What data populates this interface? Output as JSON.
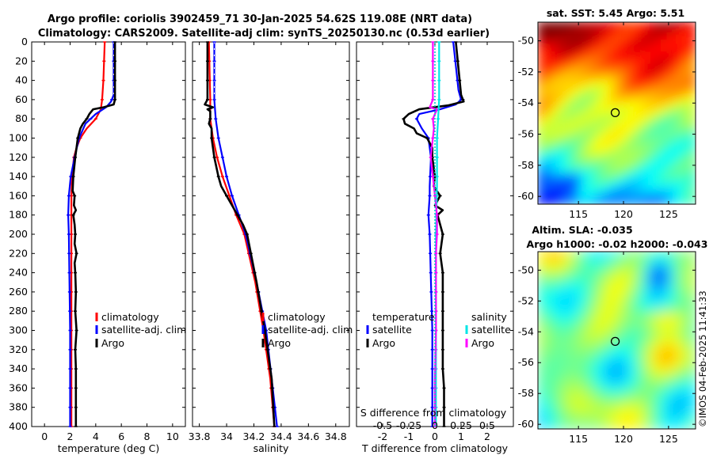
{
  "header": {
    "title_line1": "Argo profile: coriolis 3902459_71 30-Jan-2025 54.62S 119.08E (NRT data)",
    "title_line2": "Climatology: CARS2009. Satellite-adj clim: synTS_20250130.nc (0.53d earlier)"
  },
  "watermark": "©IMOS 04-Feb-2025 11:41:33",
  "colors": {
    "climatology": "#ff0000",
    "satellite": "#0000ff",
    "argo": "#000000",
    "sat_salinity": "#00e5e5",
    "argo_salinity": "#ff00ff",
    "zero_line": "#00c8c8"
  },
  "chart_data": [
    {
      "type": "line",
      "id": "temperature",
      "xlabel": "temperature (deg C)",
      "xlim": [
        -1,
        11
      ],
      "xticks": [
        0,
        2,
        4,
        6,
        8,
        10
      ],
      "ylim": [
        400,
        0
      ],
      "yticks": [
        0,
        20,
        40,
        60,
        80,
        100,
        120,
        140,
        160,
        180,
        200,
        220,
        240,
        260,
        280,
        300,
        320,
        340,
        360,
        380,
        400
      ],
      "legend": [
        "climatology",
        "satellite-adj. clim",
        "Argo"
      ],
      "series": [
        {
          "name": "climatology",
          "color": "red",
          "depth": [
            0,
            40,
            60,
            70,
            80,
            90,
            100,
            110,
            120,
            140,
            160,
            180,
            200,
            250,
            300,
            350,
            400
          ],
          "value": [
            4.7,
            4.6,
            4.5,
            4.4,
            4.0,
            3.3,
            2.8,
            2.5,
            2.3,
            2.15,
            2.1,
            2.1,
            2.1,
            2.1,
            2.1,
            2.1,
            2.1
          ]
        },
        {
          "name": "satellite-adj. clim",
          "color": "blue",
          "depth": [
            0,
            55,
            62,
            68,
            75,
            85,
            100,
            120,
            140,
            160,
            180,
            200,
            250,
            300,
            350,
            400
          ],
          "value": [
            5.4,
            5.4,
            5.2,
            4.8,
            4.0,
            3.2,
            2.7,
            2.35,
            2.05,
            1.9,
            1.85,
            1.9,
            1.95,
            2.0,
            2.0,
            2.0
          ],
          "dashed": [
            0,
            55
          ]
        },
        {
          "name": "Argo",
          "color": "black",
          "depth": [
            0,
            60,
            65,
            68,
            70,
            75,
            80,
            85,
            90,
            100,
            110,
            120,
            140,
            155,
            160,
            170,
            175,
            180,
            190,
            200,
            210,
            220,
            230,
            240,
            260,
            280,
            300,
            320,
            340,
            360,
            380,
            400
          ],
          "value": [
            5.5,
            5.5,
            5.4,
            4.6,
            3.8,
            3.5,
            3.3,
            3.0,
            2.8,
            2.6,
            2.5,
            2.4,
            2.25,
            2.2,
            2.35,
            2.3,
            2.45,
            2.25,
            2.35,
            2.4,
            2.35,
            2.5,
            2.35,
            2.4,
            2.45,
            2.4,
            2.5,
            2.4,
            2.45,
            2.45,
            2.45,
            2.45
          ]
        }
      ]
    },
    {
      "type": "line",
      "id": "salinity",
      "xlabel": "salinity",
      "xlim": [
        33.75,
        34.9
      ],
      "xticks": [
        33.8,
        34,
        34.2,
        34.4,
        34.6,
        34.8
      ],
      "xticklabels": [
        "33.8",
        "34",
        "34.2",
        "34.4",
        "34.6",
        "34.8"
      ],
      "ylim": [
        400,
        0
      ],
      "legend": [
        "climatology",
        "satellite-adj. clim",
        "Argo"
      ],
      "series": [
        {
          "name": "climatology",
          "color": "red",
          "depth": [
            0,
            60,
            80,
            100,
            120,
            140,
            160,
            180,
            200,
            250,
            300,
            350,
            400
          ],
          "value": [
            33.87,
            33.88,
            33.88,
            33.9,
            33.93,
            33.97,
            34.02,
            34.07,
            34.13,
            34.21,
            34.27,
            34.32,
            34.35
          ]
        },
        {
          "name": "satellite-adj. clim",
          "color": "blue",
          "depth": [
            0,
            60,
            80,
            100,
            120,
            140,
            160,
            180,
            200,
            250,
            300,
            350,
            400
          ],
          "value": [
            33.91,
            33.91,
            33.92,
            33.94,
            33.97,
            34.0,
            34.04,
            34.09,
            34.14,
            34.22,
            34.29,
            34.33,
            34.37
          ],
          "dashed": [
            0,
            60
          ]
        },
        {
          "name": "Argo",
          "color": "black",
          "depth": [
            0,
            60,
            65,
            68,
            70,
            72,
            80,
            85,
            90,
            100,
            110,
            120,
            140,
            150,
            160,
            170,
            180,
            190,
            200,
            250,
            300,
            350,
            400
          ],
          "value": [
            33.86,
            33.86,
            33.84,
            33.9,
            33.86,
            33.88,
            33.88,
            33.87,
            33.89,
            33.89,
            33.9,
            33.91,
            33.94,
            33.96,
            34.0,
            34.04,
            34.08,
            34.12,
            34.15,
            34.22,
            34.28,
            34.33,
            34.35
          ]
        }
      ]
    },
    {
      "type": "line",
      "id": "difference",
      "xlabel": "T difference from climatology",
      "xlabel_top": "S difference from climatology",
      "xlim": [
        -3,
        3
      ],
      "xticks": [
        -2,
        -1,
        0,
        1,
        2
      ],
      "xticklabels": [
        "-2",
        "-1",
        "0",
        "1",
        "2"
      ],
      "top_ticks_s": [
        -0.5,
        -0.25,
        0,
        0.25,
        0.5
      ],
      "top_ticklabels": [
        "-0.5",
        "-0.25",
        "0",
        "0.25",
        "0.5"
      ],
      "ylim": [
        400,
        0
      ],
      "legend_left_title": "temperature",
      "legend_right_title": "salinity",
      "legend": [
        "satellite",
        "Argo",
        "satellite",
        "Argo"
      ],
      "series": [
        {
          "name": "T satellite",
          "color": "blue",
          "depth": [
            0,
            50,
            60,
            65,
            70,
            75,
            80,
            90,
            100,
            120,
            150,
            160,
            180,
            200,
            250,
            300,
            350,
            400
          ],
          "value": [
            0.7,
            0.9,
            1.0,
            0.8,
            0.2,
            -0.6,
            -0.7,
            -0.5,
            -0.25,
            -0.15,
            -0.2,
            -0.2,
            -0.25,
            -0.2,
            -0.15,
            -0.1,
            -0.1,
            -0.1
          ]
        },
        {
          "name": "T Argo",
          "color": "black",
          "depth": [
            0,
            55,
            62,
            66,
            70,
            75,
            80,
            85,
            90,
            95,
            100,
            110,
            120,
            140,
            150,
            160,
            170,
            175,
            180,
            190,
            200,
            220,
            240,
            260,
            280,
            300,
            320,
            340,
            360,
            380,
            400
          ],
          "value": [
            0.8,
            1.0,
            1.1,
            0.5,
            -0.6,
            -1.0,
            -1.2,
            -1.15,
            -0.8,
            -0.7,
            -0.3,
            -0.1,
            -0.1,
            0.0,
            -0.05,
            0.2,
            0.0,
            0.3,
            0.1,
            0.2,
            0.3,
            0.2,
            0.3,
            0.3,
            0.3,
            0.3,
            0.3,
            0.3,
            0.35,
            0.35,
            0.35
          ]
        },
        {
          "name": "S satellite",
          "color": "cyan",
          "depth": [
            0,
            40,
            60,
            80,
            100,
            150,
            200,
            250,
            300,
            350,
            400
          ],
          "value": [
            0.04,
            0.04,
            0.04,
            0.03,
            0.02,
            0.02,
            0.01,
            0.01,
            0.01,
            0.01,
            0.01
          ]
        },
        {
          "name": "S Argo",
          "color": "magenta",
          "depth": [
            0,
            60,
            68,
            70,
            80,
            90,
            100,
            120,
            140,
            160,
            180,
            200,
            220,
            250,
            300,
            350,
            400
          ],
          "value": [
            -0.02,
            -0.02,
            -0.05,
            0.02,
            -0.02,
            -0.01,
            -0.02,
            -0.04,
            -0.02,
            0.0,
            0.02,
            0.02,
            0.01,
            0.01,
            0.01,
            0.0,
            0.0
          ]
        }
      ]
    },
    {
      "type": "heatmap",
      "id": "sst",
      "title": "sat. SST: 5.45 Argo: 5.51",
      "xlim": [
        110.5,
        128
      ],
      "ylim": [
        -60.5,
        -48.8
      ],
      "xticks": [
        115,
        120,
        125
      ],
      "yticks": [
        -50,
        -52,
        -54,
        -56,
        -58,
        -60
      ],
      "marker": {
        "lon": 119.08,
        "lat": -54.62
      },
      "field": "sst"
    },
    {
      "type": "heatmap",
      "id": "sla",
      "title": "Altim. SLA: -0.035",
      "title2": "Argo h1000: -0.02 h2000: -0.043",
      "xlim": [
        110.5,
        128
      ],
      "ylim": [
        -60.3,
        -48.8
      ],
      "xticks": [
        115,
        120,
        125
      ],
      "yticks": [
        -50,
        -52,
        -54,
        -56,
        -58,
        -60
      ],
      "marker": {
        "lon": 119.08,
        "lat": -54.62
      },
      "field": "sla"
    }
  ]
}
